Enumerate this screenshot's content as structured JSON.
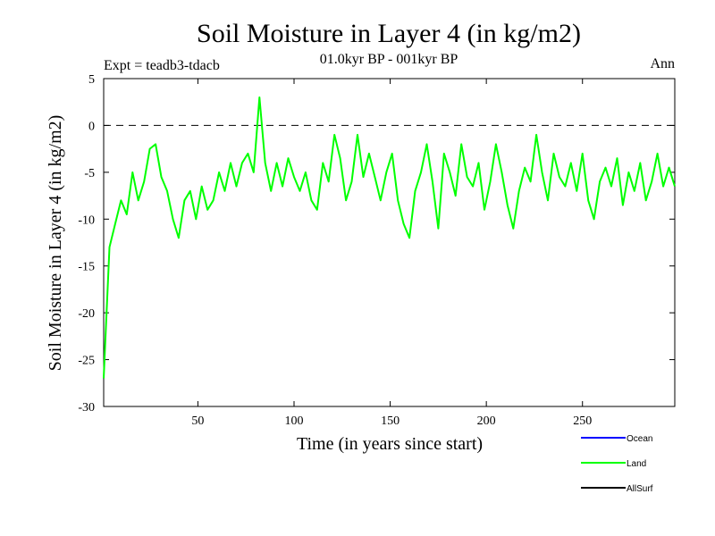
{
  "chart_data": {
    "type": "line",
    "title": "Soil Moisture in Layer 4 (in kg/m2)",
    "subtitle": "01.0kyr BP - 001kyr BP",
    "experiment_label": "Expt = teadb3-tdacb",
    "period_label": "Ann",
    "xlabel": "Time (in years since start)",
    "ylabel": "Soil Moisture in Layer 4 (in kg/m2)",
    "xlim": [
      1,
      298
    ],
    "ylim": [
      -30,
      5
    ],
    "xticks": [
      50,
      100,
      150,
      200,
      250
    ],
    "yticks": [
      5,
      0,
      -5,
      -10,
      -15,
      -20,
      -25,
      -30
    ],
    "reference_line_y": 0,
    "series": [
      {
        "name": "Land",
        "color": "#00ff00",
        "x": [
          1,
          4,
          7,
          10,
          13,
          16,
          19,
          22,
          25,
          28,
          31,
          34,
          37,
          40,
          43,
          46,
          49,
          52,
          55,
          58,
          61,
          64,
          67,
          70,
          73,
          76,
          79,
          82,
          85,
          88,
          91,
          94,
          97,
          100,
          103,
          106,
          109,
          112,
          115,
          118,
          121,
          124,
          127,
          130,
          133,
          136,
          139,
          142,
          145,
          148,
          151,
          154,
          157,
          160,
          163,
          166,
          169,
          172,
          175,
          178,
          181,
          184,
          187,
          190,
          193,
          196,
          199,
          202,
          205,
          208,
          211,
          214,
          217,
          220,
          223,
          226,
          229,
          232,
          235,
          238,
          241,
          244,
          247,
          250,
          253,
          256,
          259,
          262,
          265,
          268,
          271,
          274,
          277,
          280,
          283,
          286,
          289,
          292,
          295,
          298
        ],
        "values": [
          -27,
          -13,
          -10.5,
          -8,
          -9.5,
          -5,
          -8,
          -6,
          -2.5,
          -2,
          -5.5,
          -7,
          -10,
          -12,
          -8,
          -7,
          -10,
          -6.5,
          -9,
          -8,
          -5,
          -7,
          -4,
          -6.5,
          -4,
          -3,
          -5,
          3,
          -4,
          -7,
          -4,
          -6.5,
          -3.5,
          -5.5,
          -7,
          -5,
          -8,
          -9,
          -4,
          -6,
          -1,
          -3.5,
          -8,
          -6,
          -1,
          -5.5,
          -3,
          -5.5,
          -8,
          -5,
          -3,
          -8,
          -10.5,
          -12,
          -7,
          -5,
          -2,
          -6,
          -11,
          -3,
          -5,
          -7.5,
          -2,
          -5.5,
          -6.5,
          -4,
          -9,
          -6,
          -2,
          -5,
          -8.5,
          -11,
          -7,
          -4.5,
          -6,
          -1,
          -5,
          -8,
          -3,
          -5.5,
          -6.5,
          -4,
          -7,
          -3,
          -8,
          -10,
          -6,
          -4.5,
          -6.5,
          -3.5,
          -8.5,
          -5,
          -7,
          -4,
          -8,
          -6,
          -3,
          -6.5,
          -4.5,
          -6.5
        ]
      }
    ],
    "legend": [
      {
        "label": "Ocean",
        "color": "#0000ff"
      },
      {
        "label": "Land",
        "color": "#00ff00"
      },
      {
        "label": "AllSurf",
        "color": "#000000"
      }
    ]
  }
}
